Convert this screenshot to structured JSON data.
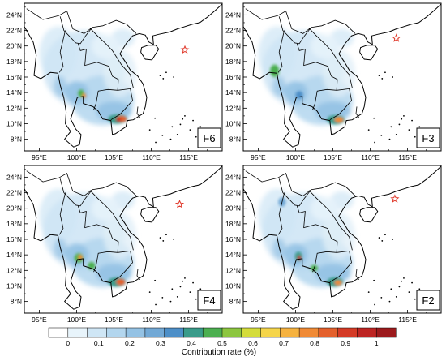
{
  "panels": [
    {
      "label": "F6",
      "lat_ticks": [
        "24°N",
        "22°N",
        "20°N",
        "18°N",
        "16°N",
        "14°N",
        "12°N",
        "10°N",
        "8°N"
      ],
      "lon_ticks": [
        "95°E",
        "100°E",
        "105°E",
        "110°E",
        "115°E"
      ],
      "star": {
        "lon": 114.5,
        "lat": 19.5
      }
    },
    {
      "label": "F3",
      "lat_ticks": [
        "24°N",
        "22°N",
        "20°N",
        "18°N",
        "16°N",
        "14°N",
        "12°N",
        "10°N",
        "8°N"
      ],
      "lon_ticks": [
        "95°E",
        "100°E",
        "105°E",
        "110°E",
        "115°E"
      ],
      "star": {
        "lon": 113.5,
        "lat": 21.0
      }
    },
    {
      "label": "F4",
      "lat_ticks": [
        "24°N",
        "22°N",
        "20°N",
        "18°N",
        "16°N",
        "14°N",
        "12°N",
        "10°N",
        "8°N"
      ],
      "lon_ticks": [
        "95°E",
        "100°E",
        "105°E",
        "110°E",
        "115°E"
      ],
      "star": {
        "lon": 113.8,
        "lat": 20.5
      }
    },
    {
      "label": "F2",
      "lat_ticks": [
        "24°N",
        "22°N",
        "20°N",
        "18°N",
        "16°N",
        "14°N",
        "12°N",
        "10°N",
        "8°N"
      ],
      "lon_ticks": [
        "95°E",
        "100°E",
        "105°E",
        "110°E",
        "115°E"
      ],
      "star": {
        "lon": 113.3,
        "lat": 21.2
      }
    }
  ],
  "colorbar": {
    "title": "Contribution rate (%)",
    "tick_labels": [
      "0",
      "0.1",
      "0.2",
      "0.3",
      "0.4",
      "0.5",
      "0.6",
      "0.7",
      "0.8",
      "0.9",
      "1"
    ],
    "colors": [
      "#ffffff",
      "#e8f4fb",
      "#cfe6f5",
      "#b3d6ee",
      "#94c2e4",
      "#72a9d6",
      "#4d8fc8",
      "#3a9b8a",
      "#4caf50",
      "#8cc63f",
      "#d4dc3a",
      "#f5d54a",
      "#f6b23f",
      "#f08a35",
      "#e4602c",
      "#d43a26",
      "#bd2422",
      "#9c1a1c"
    ]
  }
}
